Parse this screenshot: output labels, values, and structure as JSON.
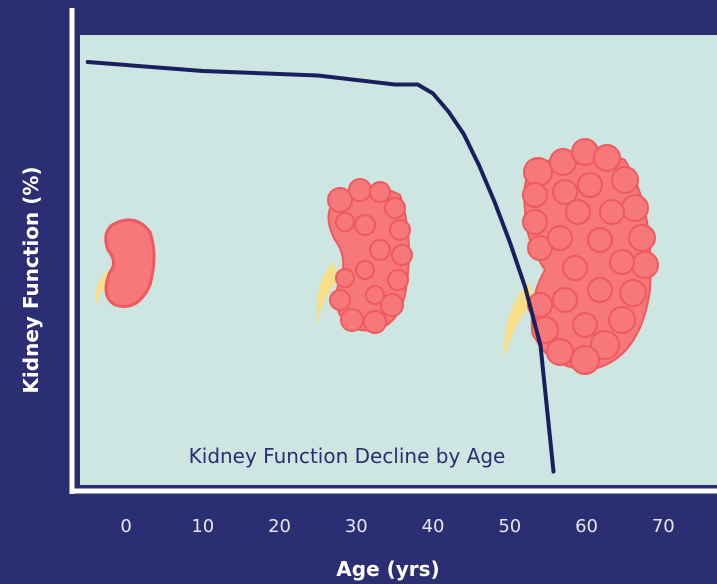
{
  "chart_data": {
    "type": "line",
    "x_label": "Age (yrs)",
    "y_label": "Kidney Function (%)",
    "annotation": "Kidney Function Decline by Age",
    "xlim": [
      -6,
      77
    ],
    "xticks": [
      0,
      10,
      20,
      30,
      40,
      50,
      60,
      70
    ],
    "ylim": [
      0,
      100
    ],
    "series": [
      {
        "color": "#1a1f5e",
        "x": [
          -5,
          10,
          25,
          35,
          38,
          40,
          42,
          44,
          46,
          48,
          50,
          52,
          54,
          55.7
        ],
        "values": [
          94,
          92,
          91,
          89,
          89,
          87,
          83,
          78,
          71,
          63,
          54,
          44,
          31,
          3
        ]
      }
    ]
  }
}
